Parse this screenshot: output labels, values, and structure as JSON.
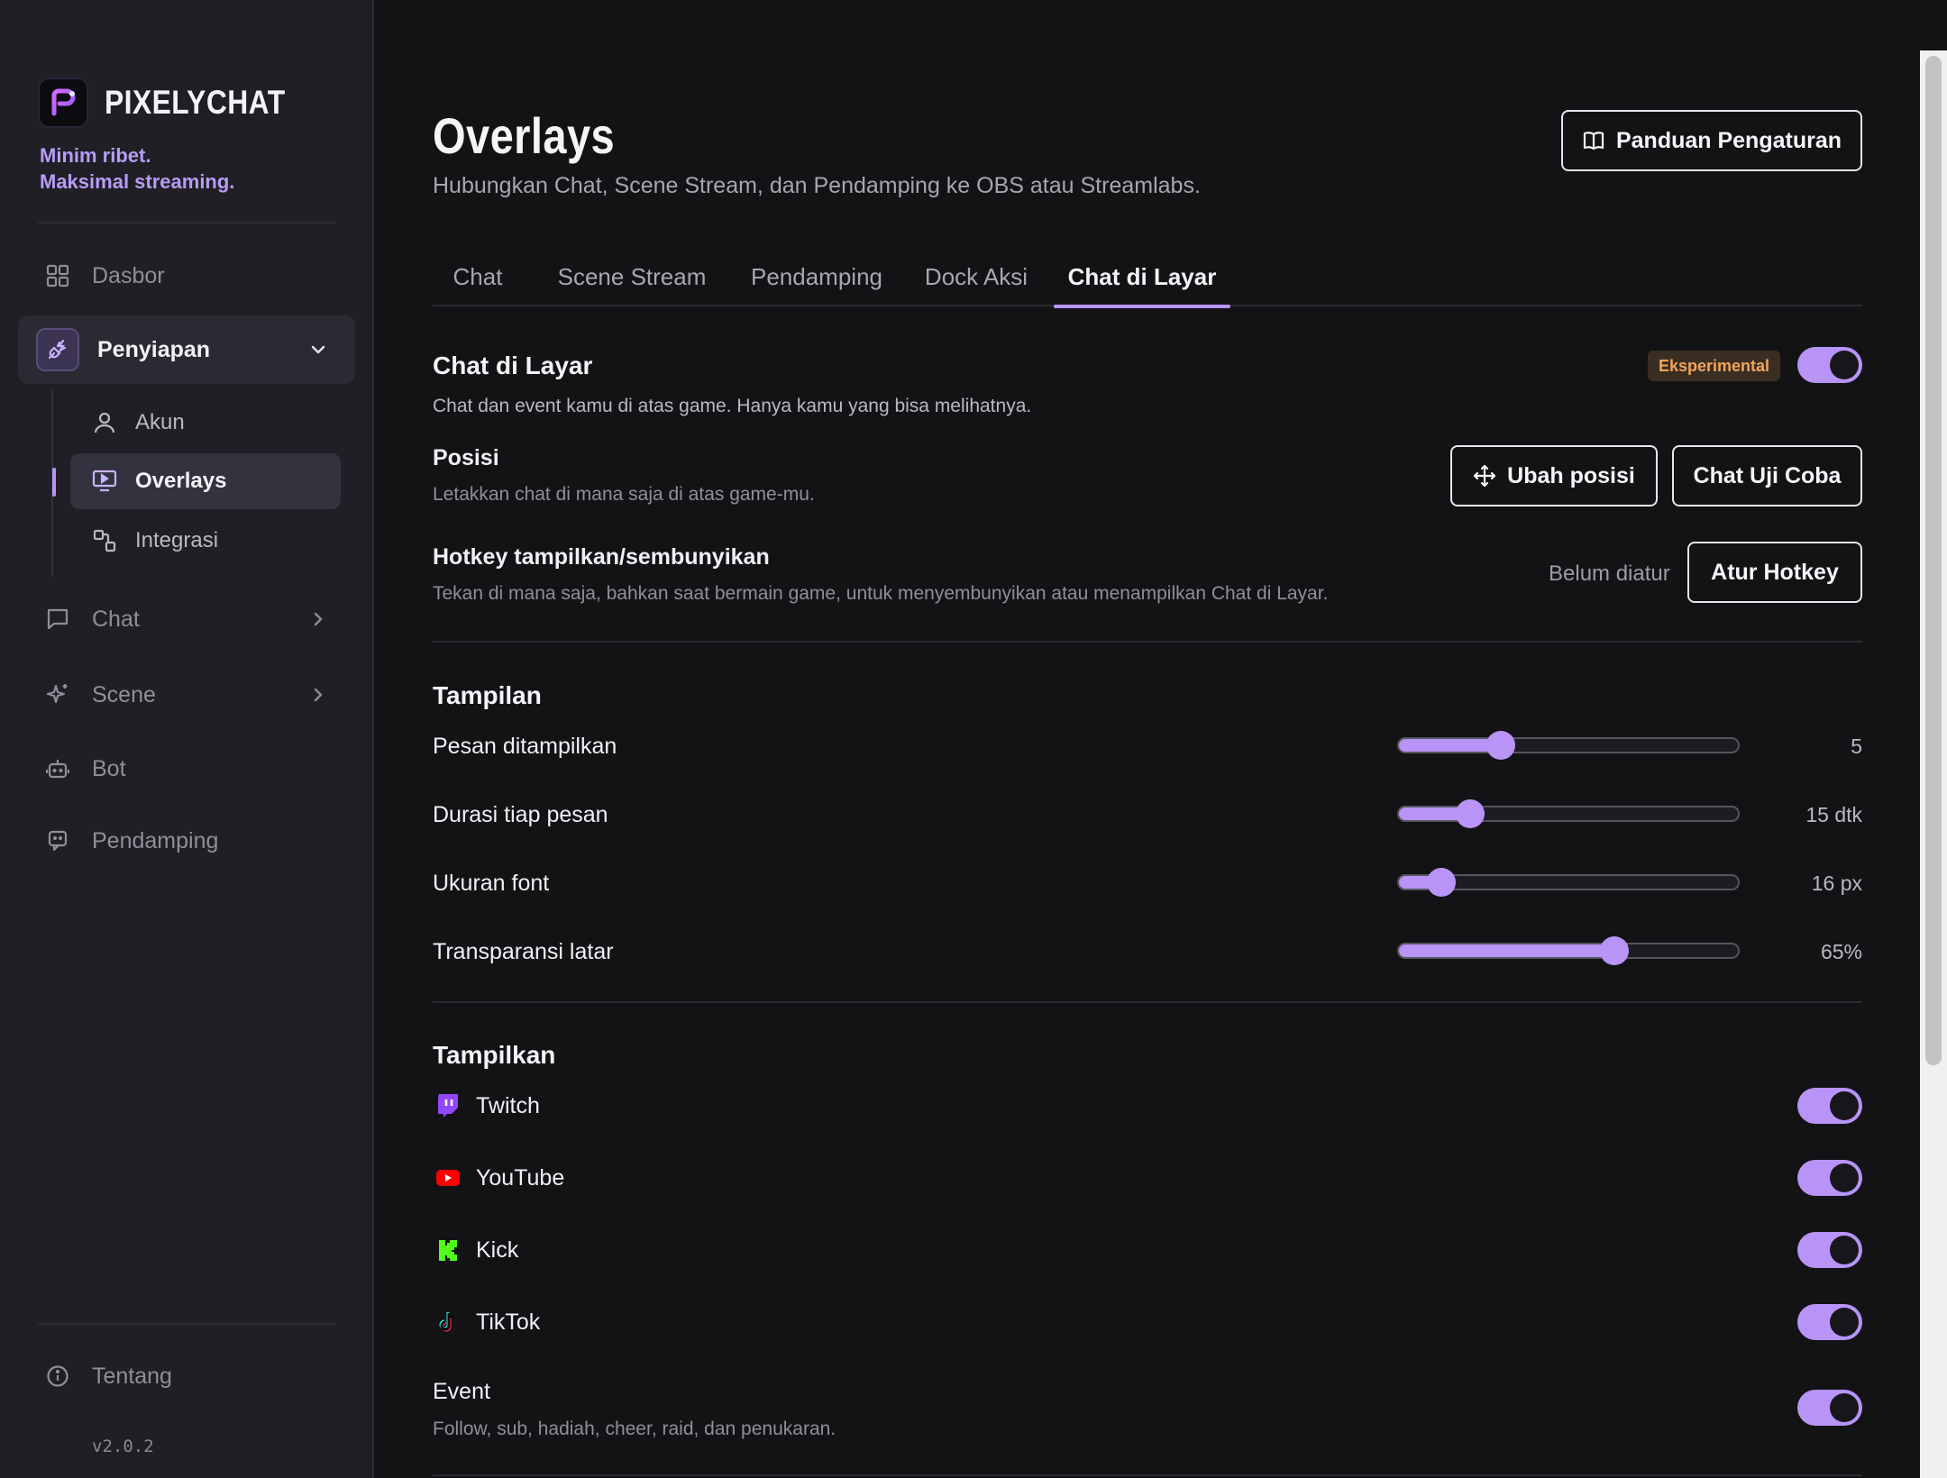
{
  "sidebar": {
    "brand": "PIXELYCHAT",
    "tagline_1": "Minim ribet.",
    "tagline_2": "Maksimal streaming.",
    "nav": {
      "dashboard": "Dasbor",
      "setup": "Penyiapan",
      "chat": "Chat",
      "scene": "Scene",
      "bot": "Bot",
      "companion": "Pendamping",
      "about": "Tentang"
    },
    "sub": {
      "account": "Akun",
      "overlays": "Overlays",
      "integration": "Integrasi"
    },
    "version": "v2.0.2"
  },
  "header": {
    "title": "Overlays",
    "subtitle": "Hubungkan Chat, Scene Stream, dan Pendamping ke OBS atau Streamlabs.",
    "guide_button": "Panduan Pengaturan"
  },
  "tabs": [
    "Chat",
    "Scene Stream",
    "Pendamping",
    "Dock Aksi",
    "Chat di Layar"
  ],
  "active_tab": "Chat di Layar",
  "screen_chat": {
    "title": "Chat di Layar",
    "badge": "Eksperimental",
    "enabled": true,
    "description": "Chat dan event kamu di atas game. Hanya kamu yang bisa melihatnya.",
    "position_title": "Posisi",
    "position_desc": "Letakkan chat di mana saja di atas game-mu.",
    "move_button": "Ubah posisi",
    "test_button": "Chat Uji Coba",
    "hotkey_title": "Hotkey tampilkan/sembunyikan",
    "hotkey_desc": "Tekan di mana saja, bahkan saat bermain game, untuk menyembunyikan atau menampilkan Chat di Layar.",
    "hotkey_status": "Belum diatur",
    "hotkey_button": "Atur Hotkey"
  },
  "appearance": {
    "title": "Tampilan",
    "sliders": [
      {
        "label": "Pesan ditampilkan",
        "value_text": "5",
        "fraction": 0.3
      },
      {
        "label": "Durasi tiap pesan",
        "value_text": "15 dtk",
        "fraction": 0.21
      },
      {
        "label": "Ukuran font",
        "value_text": "16 px",
        "fraction": 0.125
      },
      {
        "label": "Transparansi latar",
        "value_text": "65%",
        "fraction": 0.635
      }
    ]
  },
  "show": {
    "title": "Tampilkan",
    "platforms": [
      {
        "label": "Twitch",
        "icon": "twitch-icon",
        "enabled": true,
        "color": "#9146ff"
      },
      {
        "label": "YouTube",
        "icon": "youtube-icon",
        "enabled": true,
        "color": "#ff0000"
      },
      {
        "label": "Kick",
        "icon": "kick-icon",
        "enabled": true,
        "color": "#53fc18"
      },
      {
        "label": "TikTok",
        "icon": "tiktok-icon",
        "enabled": true,
        "color": "#000000"
      }
    ],
    "event_title": "Event",
    "event_desc": "Follow, sub, hadiah, cheer, raid, dan penukaran.",
    "event_enabled": true
  },
  "colors": {
    "accent": "#b794f6",
    "badge_text": "#f1a45a",
    "background": "#131316",
    "sidebar": "#1f1f25"
  }
}
